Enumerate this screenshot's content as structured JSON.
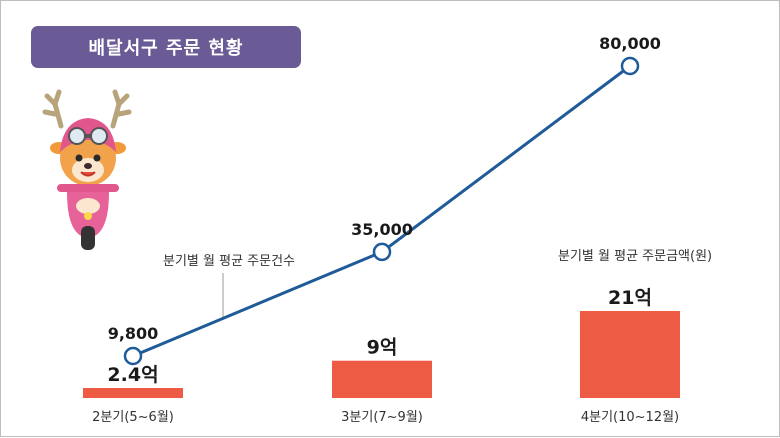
{
  "title": "배달서구 주문 현황",
  "colors": {
    "badge": "#6a5a96",
    "line": "#1f5a99",
    "bar": "#ee5b45",
    "text": "#1a1a1a"
  },
  "chart_data": {
    "type": "bar+line",
    "categories": [
      "2분기(5~6월)",
      "3분기(7~9월)",
      "4분기(10~12월)"
    ],
    "series": [
      {
        "name": "분기별 월 평균 주문건수",
        "type": "line",
        "values": [
          9800,
          35000,
          80000
        ],
        "labels": [
          "9,800",
          "35,000",
          "80,000"
        ]
      },
      {
        "name": "분기별 월 평균 주문금액(원)",
        "type": "bar",
        "values": [
          2.4,
          9,
          21
        ],
        "labels": [
          "2.4억",
          "9억",
          "21억"
        ]
      }
    ],
    "line_label": "분기별 월 평균 주문건수",
    "bar_label": "분기별 월 평균 주문금액(원)"
  }
}
